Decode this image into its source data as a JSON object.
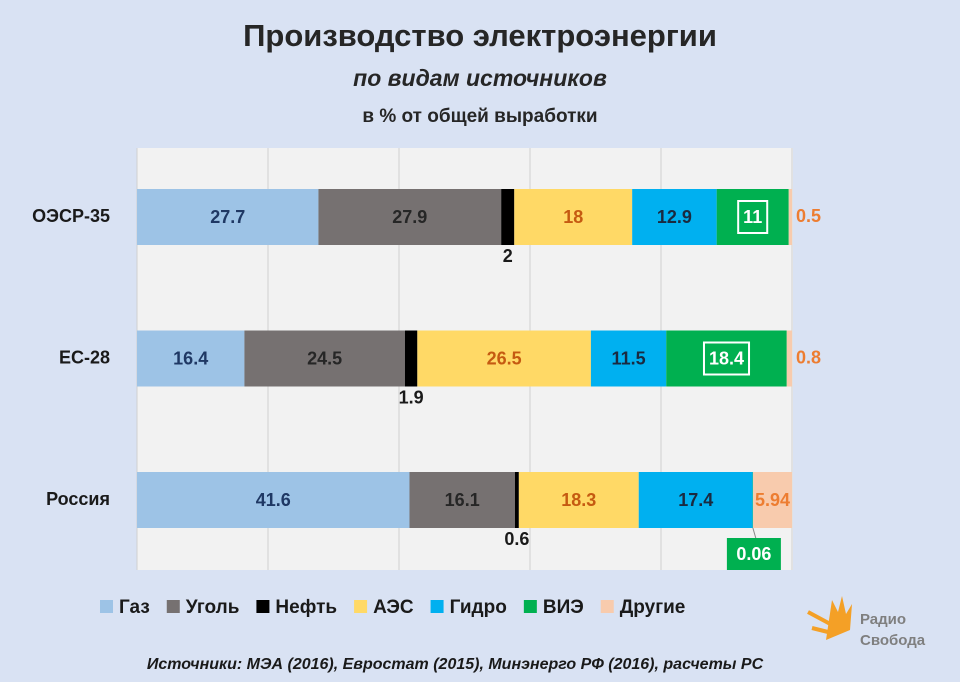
{
  "chart_data": {
    "type": "stacked-barh",
    "title": "Производство электроэнергии",
    "subtitle": "по видам источников",
    "unit_note": "в % от общей выработки",
    "source": "Источники: МЭА (2016), Евростат (2015), Минэнерго РФ (2016), расчеты РС",
    "logo": [
      "Радио",
      "Свобода"
    ],
    "categories": [
      "ОЭСР-35",
      "ЕС-28",
      "Россия"
    ],
    "xlim": [
      0,
      100
    ],
    "xticks": [
      0,
      20,
      40,
      60,
      80,
      100
    ],
    "grid": true,
    "series": [
      {
        "name": "Газ",
        "color": "#9dc3e6",
        "label_color": "#1f3864",
        "values": [
          27.7,
          16.4,
          41.6
        ]
      },
      {
        "name": "Уголь",
        "color": "#767171",
        "label_color": "#262626",
        "values": [
          27.9,
          24.5,
          16.1
        ]
      },
      {
        "name": "Нефть",
        "color": "#000000",
        "label_color": "#1a1a1a",
        "values": [
          2,
          1.9,
          0.6
        ]
      },
      {
        "name": "АЭС",
        "color": "#ffd966",
        "label_color": "#c55a11",
        "values": [
          18,
          26.5,
          18.3
        ]
      },
      {
        "name": "Гидро",
        "color": "#00b0f0",
        "label_color": "#1a2a40",
        "values": [
          12.9,
          11.5,
          17.4
        ]
      },
      {
        "name": "ВИЭ",
        "color": "#00b050",
        "label_color": "#ffffff",
        "values": [
          11,
          18.4,
          0.06
        ]
      },
      {
        "name": "Другие",
        "color": "#f8cbad",
        "label_color": "#ed7d31",
        "values": [
          0.5,
          0.8,
          5.94
        ]
      }
    ]
  }
}
